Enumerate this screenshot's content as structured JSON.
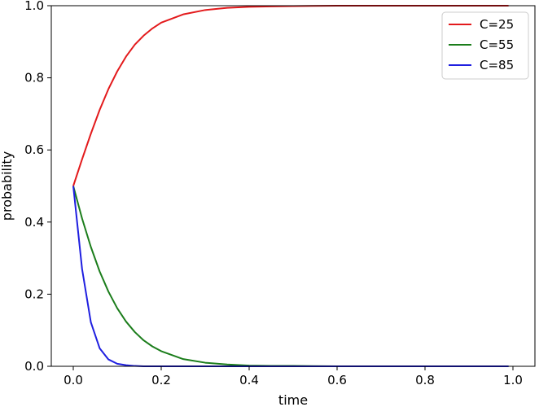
{
  "chart_data": {
    "type": "line",
    "xlabel": "time",
    "ylabel": "probability",
    "xlim": [
      -0.05,
      1.05
    ],
    "ylim": [
      0.0,
      1.0
    ],
    "x_ticks": [
      "0.0",
      "0.2",
      "0.4",
      "0.6",
      "0.8",
      "1.0"
    ],
    "y_ticks": [
      "0.0",
      "0.2",
      "0.4",
      "0.6",
      "0.8",
      "1.0"
    ],
    "grid": false,
    "legend_position": "top-right",
    "x": [
      0.0,
      0.02,
      0.04,
      0.06,
      0.08,
      0.1,
      0.12,
      0.14,
      0.16,
      0.18,
      0.2,
      0.25,
      0.3,
      0.35,
      0.4,
      0.45,
      0.5,
      0.6,
      0.7,
      0.8,
      0.9,
      0.99
    ],
    "series": [
      {
        "name": "C=25",
        "color": "#e31a1c",
        "values": [
          0.5,
          0.574,
          0.645,
          0.711,
          0.769,
          0.818,
          0.859,
          0.892,
          0.917,
          0.937,
          0.953,
          0.976,
          0.988,
          0.994,
          0.997,
          0.998,
          0.999,
          1.0,
          1.0,
          1.0,
          1.0,
          1.0
        ]
      },
      {
        "name": "C=55",
        "color": "#1b7d1b",
        "values": [
          0.5,
          0.41,
          0.331,
          0.263,
          0.207,
          0.161,
          0.124,
          0.095,
          0.072,
          0.055,
          0.042,
          0.02,
          0.01,
          0.005,
          0.002,
          0.001,
          0.001,
          0.0,
          0.0,
          0.0,
          0.0,
          0.0
        ]
      },
      {
        "name": "C=85",
        "color": "#1f1fe0",
        "values": [
          0.5,
          0.27,
          0.122,
          0.05,
          0.019,
          0.007,
          0.003,
          0.001,
          0.0,
          0.0,
          0.0,
          0.0,
          0.0,
          0.0,
          0.0,
          0.0,
          0.0,
          0.0,
          0.0,
          0.0,
          0.0,
          0.0
        ]
      }
    ]
  }
}
